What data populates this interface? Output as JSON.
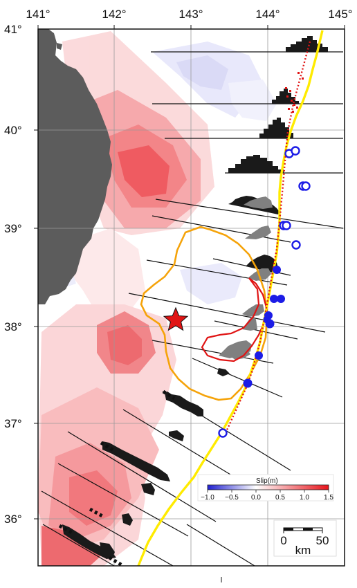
{
  "map": {
    "longitude_ticks": [
      "141°",
      "142°",
      "143°",
      "144°",
      "145°"
    ],
    "latitude_ticks": [
      "41°",
      "40°",
      "39°",
      "38°",
      "37°",
      "36°"
    ],
    "epicenter_symbol": "red-star",
    "colors": {
      "land": "#5c5c5c",
      "trench": "#ffeb00",
      "positive_slip": "#e8141b",
      "negative_slip": "#3c3cdc",
      "contour_orange": "#f5a30a",
      "contour_red": "#e01414",
      "station_blue": "#1c1ce6",
      "histogram": "#1a1a1a",
      "gray_histogram": "#808080"
    }
  },
  "colorbar": {
    "title": "Slip(m)",
    "ticks": [
      "−1.0",
      "−0.5",
      "0.0",
      "0.5",
      "1.0",
      "1.5"
    ],
    "range": [
      -1.0,
      1.5
    ]
  },
  "scalebar": {
    "labels": [
      "0",
      "50"
    ],
    "unit": "km"
  }
}
